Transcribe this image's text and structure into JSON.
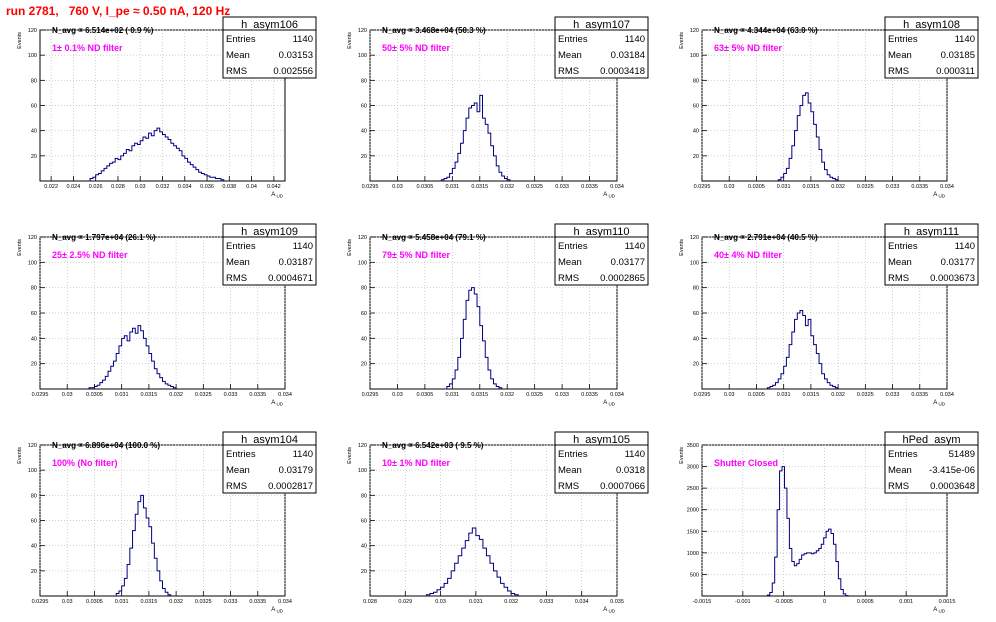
{
  "title": "run 2781,   760 V, I_pe ≈ 0.50 nA, 120 Hz",
  "colors": {
    "title": "#ff0000",
    "histogram": "#000080",
    "annotation": "#ff00ff",
    "grid": "#bbbbbb"
  },
  "chart_data": [
    {
      "type": "histogram",
      "name": "h_asym106",
      "stats": {
        "entries_label": "Entries",
        "entries": "1140",
        "mean_label": "Mean",
        "mean": "0.03153",
        "rms_label": "RMS",
        "rms": "0.002556"
      },
      "navg_label": "N_avg = 6.514e+02 ( 0.9 %)",
      "annotation": "1± 0.1% ND filter",
      "xlabel": "A_UD",
      "ylabel": "Events",
      "xlim": [
        0.021,
        0.043
      ],
      "ylim": [
        0,
        120
      ],
      "xticks": [
        "0.022",
        "0.024",
        "0.026",
        "0.028",
        "0.03",
        "0.032",
        "0.034",
        "0.036",
        "0.038",
        "0.04",
        "0.042"
      ],
      "xtick_values": [
        0.022,
        0.024,
        0.026,
        0.028,
        0.03,
        0.032,
        0.034,
        0.036,
        0.038,
        0.04,
        0.042
      ],
      "yticks": [
        "20",
        "40",
        "60",
        "80",
        "100",
        "120"
      ],
      "ytick_values": [
        20,
        40,
        60,
        80,
        100,
        120
      ],
      "bin_start": 0.0255,
      "bin_width": 0.00025,
      "counts": [
        2,
        3,
        5,
        6,
        8,
        10,
        12,
        14,
        15,
        18,
        17,
        20,
        22,
        25,
        24,
        28,
        30,
        29,
        32,
        35,
        34,
        38,
        36,
        40,
        42,
        39,
        37,
        35,
        33,
        30,
        28,
        26,
        24,
        20,
        18,
        15,
        13,
        11,
        9,
        7,
        6,
        5,
        4,
        3,
        3,
        2,
        2,
        1
      ]
    },
    {
      "type": "histogram",
      "name": "h_asym107",
      "stats": {
        "entries_label": "Entries",
        "entries": "1140",
        "mean_label": "Mean",
        "mean": "0.03184",
        "rms_label": "RMS",
        "rms": "0.0003418"
      },
      "navg_label": "N_avg = 3.468e+04 (50.3 %)",
      "annotation": "50± 5% ND filter",
      "xlabel": "A_UD",
      "ylabel": "Events",
      "xlim": [
        0.0295,
        0.034
      ],
      "ylim": [
        0,
        120
      ],
      "xticks": [
        "0.0295",
        "0.03",
        "0.0305",
        "0.031",
        "0.0315",
        "0.032",
        "0.0325",
        "0.033",
        "0.0335",
        "0.034"
      ],
      "xtick_values": [
        0.0295,
        0.03,
        0.0305,
        0.031,
        0.0315,
        0.032,
        0.0325,
        0.033,
        0.0335,
        0.034
      ],
      "yticks": [
        "20",
        "40",
        "60",
        "80",
        "100",
        "120"
      ],
      "ytick_values": [
        20,
        40,
        60,
        80,
        100,
        120
      ],
      "bin_start": 0.0308,
      "bin_width": 5e-05,
      "counts": [
        1,
        2,
        3,
        6,
        10,
        15,
        22,
        30,
        40,
        50,
        58,
        60,
        62,
        55,
        68,
        50,
        45,
        38,
        28,
        20,
        12,
        7,
        4,
        2,
        1
      ]
    },
    {
      "type": "histogram",
      "name": "h_asym108",
      "stats": {
        "entries_label": "Entries",
        "entries": "1140",
        "mean_label": "Mean",
        "mean": "0.03185",
        "rms_label": "RMS",
        "rms": "0.000311"
      },
      "navg_label": "N_avg = 4.344e+04 (63.0 %)",
      "annotation": "63± 5% ND filter",
      "xlabel": "A_UD",
      "ylabel": "Events",
      "xlim": [
        0.0295,
        0.034
      ],
      "ylim": [
        0,
        120
      ],
      "xticks": [
        "0.0295",
        "0.03",
        "0.0305",
        "0.031",
        "0.0315",
        "0.032",
        "0.0325",
        "0.033",
        "0.0335",
        "0.034"
      ],
      "xtick_values": [
        0.0295,
        0.03,
        0.0305,
        0.031,
        0.0315,
        0.032,
        0.0325,
        0.033,
        0.0335,
        0.034
      ],
      "yticks": [
        "20",
        "40",
        "60",
        "80",
        "100",
        "120"
      ],
      "ytick_values": [
        20,
        40,
        60,
        80,
        100,
        120
      ],
      "bin_start": 0.0309,
      "bin_width": 5e-05,
      "counts": [
        1,
        3,
        6,
        10,
        18,
        28,
        40,
        52,
        60,
        68,
        70,
        62,
        55,
        45,
        35,
        25,
        15,
        9,
        5,
        3,
        2,
        1
      ]
    },
    {
      "type": "histogram",
      "name": "h_asym109",
      "stats": {
        "entries_label": "Entries",
        "entries": "1140",
        "mean_label": "Mean",
        "mean": "0.03187",
        "rms_label": "RMS",
        "rms": "0.0004671"
      },
      "navg_label": "N_avg = 1.797e+04 (26.1 %)",
      "annotation": "25± 2.5% ND filter",
      "xlabel": "A_UD",
      "ylabel": "Events",
      "xlim": [
        0.0295,
        0.034
      ],
      "ylim": [
        0,
        120
      ],
      "xticks": [
        "0.0295",
        "0.03",
        "0.0305",
        "0.031",
        "0.0315",
        "0.032",
        "0.0325",
        "0.033",
        "0.0335",
        "0.034"
      ],
      "xtick_values": [
        0.0295,
        0.03,
        0.0305,
        0.031,
        0.0315,
        0.032,
        0.0325,
        0.033,
        0.0335,
        0.034
      ],
      "yticks": [
        "20",
        "40",
        "60",
        "80",
        "100",
        "120"
      ],
      "ytick_values": [
        20,
        40,
        60,
        80,
        100,
        120
      ],
      "bin_start": 0.0304,
      "bin_width": 5e-05,
      "counts": [
        1,
        1,
        2,
        3,
        5,
        7,
        10,
        14,
        18,
        22,
        28,
        34,
        40,
        42,
        38,
        45,
        48,
        44,
        50,
        46,
        40,
        34,
        28,
        22,
        16,
        12,
        9,
        6,
        4,
        3,
        2,
        1
      ]
    },
    {
      "type": "histogram",
      "name": "h_asym110",
      "stats": {
        "entries_label": "Entries",
        "entries": "1140",
        "mean_label": "Mean",
        "mean": "0.03177",
        "rms_label": "RMS",
        "rms": "0.0002865"
      },
      "navg_label": "N_avg = 5.458e+04 (79.1 %)",
      "annotation": "79± 5% ND filter",
      "xlabel": "A_UD",
      "ylabel": "Events",
      "xlim": [
        0.0295,
        0.034
      ],
      "ylim": [
        0,
        120
      ],
      "xticks": [
        "0.0295",
        "0.03",
        "0.0305",
        "0.031",
        "0.0315",
        "0.032",
        "0.0325",
        "0.033",
        "0.0335",
        "0.034"
      ],
      "xtick_values": [
        0.0295,
        0.03,
        0.0305,
        0.031,
        0.0315,
        0.032,
        0.0325,
        0.033,
        0.0335,
        0.034
      ],
      "yticks": [
        "20",
        "40",
        "60",
        "80",
        "100",
        "120"
      ],
      "ytick_values": [
        20,
        40,
        60,
        80,
        100,
        120
      ],
      "bin_start": 0.0309,
      "bin_width": 5e-05,
      "counts": [
        2,
        4,
        8,
        15,
        25,
        40,
        55,
        70,
        78,
        80,
        75,
        65,
        50,
        38,
        25,
        15,
        8,
        4,
        2,
        1
      ]
    },
    {
      "type": "histogram",
      "name": "h_asym111",
      "stats": {
        "entries_label": "Entries",
        "entries": "1140",
        "mean_label": "Mean",
        "mean": "0.03177",
        "rms_label": "RMS",
        "rms": "0.0003673"
      },
      "navg_label": "N_avg = 2.791e+04 (40.5 %)",
      "annotation": "40± 4% ND filter",
      "xlabel": "A_UD",
      "ylabel": "Events",
      "xlim": [
        0.0295,
        0.034
      ],
      "ylim": [
        0,
        120
      ],
      "xticks": [
        "0.0295",
        "0.03",
        "0.0305",
        "0.031",
        "0.0315",
        "0.032",
        "0.0325",
        "0.033",
        "0.0335",
        "0.034"
      ],
      "xtick_values": [
        0.0295,
        0.03,
        0.0305,
        0.031,
        0.0315,
        0.032,
        0.0325,
        0.033,
        0.0335,
        0.034
      ],
      "yticks": [
        "20",
        "40",
        "60",
        "80",
        "100",
        "120"
      ],
      "ytick_values": [
        20,
        40,
        60,
        80,
        100,
        120
      ],
      "bin_start": 0.0307,
      "bin_width": 5e-05,
      "counts": [
        1,
        2,
        3,
        5,
        8,
        12,
        18,
        25,
        35,
        45,
        55,
        60,
        62,
        58,
        50,
        55,
        42,
        35,
        28,
        20,
        12,
        8,
        5,
        3,
        2,
        1
      ]
    },
    {
      "type": "histogram",
      "name": "h_asym104",
      "stats": {
        "entries_label": "Entries",
        "entries": "1140",
        "mean_label": "Mean",
        "mean": "0.03179",
        "rms_label": "RMS",
        "rms": "0.0002817"
      },
      "navg_label": "N_avg = 6.896e+04 (100.0 %)",
      "annotation": "100% (No filter)",
      "xlabel": "A_UD",
      "ylabel": "Events",
      "xlim": [
        0.0295,
        0.034
      ],
      "ylim": [
        0,
        120
      ],
      "xticks": [
        "0.0295",
        "0.03",
        "0.0305",
        "0.031",
        "0.0315",
        "0.032",
        "0.0325",
        "0.033",
        "0.0335",
        "0.034"
      ],
      "xtick_values": [
        0.0295,
        0.03,
        0.0305,
        0.031,
        0.0315,
        0.032,
        0.0325,
        0.033,
        0.0335,
        0.034
      ],
      "yticks": [
        "20",
        "40",
        "60",
        "80",
        "100",
        "120"
      ],
      "ytick_values": [
        20,
        40,
        60,
        80,
        100,
        120
      ],
      "bin_start": 0.0309,
      "bin_width": 5e-05,
      "counts": [
        2,
        4,
        8,
        14,
        25,
        38,
        52,
        65,
        75,
        80,
        70,
        62,
        55,
        42,
        30,
        20,
        12,
        6,
        3,
        1
      ]
    },
    {
      "type": "histogram",
      "name": "h_asym105",
      "stats": {
        "entries_label": "Entries",
        "entries": "1140",
        "mean_label": "Mean",
        "mean": "0.0318",
        "rms_label": "RMS",
        "rms": "0.0007066"
      },
      "navg_label": "N_avg = 6.542e+03 ( 9.5 %)",
      "annotation": "10± 1% ND filter",
      "xlabel": "A_UD",
      "ylabel": "Events",
      "xlim": [
        0.028,
        0.035
      ],
      "ylim": [
        0,
        120
      ],
      "xticks": [
        "0.028",
        "0.029",
        "0.03",
        "0.031",
        "0.032",
        "0.033",
        "0.034",
        "0.035"
      ],
      "xtick_values": [
        0.028,
        0.029,
        0.03,
        0.031,
        0.032,
        0.033,
        0.034,
        0.035
      ],
      "yticks": [
        "20",
        "40",
        "60",
        "80",
        "100",
        "120"
      ],
      "ytick_values": [
        20,
        40,
        60,
        80,
        100,
        120
      ],
      "bin_start": 0.0296,
      "bin_width": 0.0001,
      "counts": [
        1,
        2,
        3,
        5,
        7,
        10,
        14,
        20,
        26,
        32,
        38,
        44,
        50,
        54,
        48,
        45,
        38,
        32,
        26,
        20,
        15,
        10,
        7,
        4,
        2,
        1
      ]
    },
    {
      "type": "histogram",
      "name": "hPed_asym",
      "stats": {
        "entries_label": "Entries",
        "entries": "51489",
        "mean_label": "Mean",
        "mean": "-3.415e-06",
        "rms_label": "RMS",
        "rms": "0.0003648"
      },
      "navg_label": "",
      "annotation": "Shutter Closed",
      "xlabel": "A_UD",
      "ylabel": "Events",
      "xlim": [
        -0.0015,
        0.0015
      ],
      "ylim": [
        0,
        3500
      ],
      "xticks": [
        "-0.0015",
        "-0.001",
        "-0.0005",
        "0",
        "0.0005",
        "0.001",
        "0.0015"
      ],
      "xtick_values": [
        -0.0015,
        -0.001,
        -0.0005,
        0,
        0.0005,
        0.001,
        0.0015
      ],
      "yticks": [
        "500",
        "1000",
        "1500",
        "2000",
        "2500",
        "3000",
        "3500"
      ],
      "ytick_values": [
        500,
        1000,
        1500,
        2000,
        2500,
        3000,
        3500
      ],
      "bin_start": -0.0007,
      "bin_width": 3e-05,
      "counts": [
        20,
        80,
        300,
        900,
        2000,
        2900,
        3000,
        2500,
        1800,
        1100,
        800,
        700,
        750,
        850,
        950,
        980,
        1000,
        1000,
        980,
        1000,
        1050,
        1100,
        1200,
        1350,
        1500,
        1550,
        1450,
        1200,
        800,
        400,
        150,
        50,
        10
      ]
    }
  ]
}
